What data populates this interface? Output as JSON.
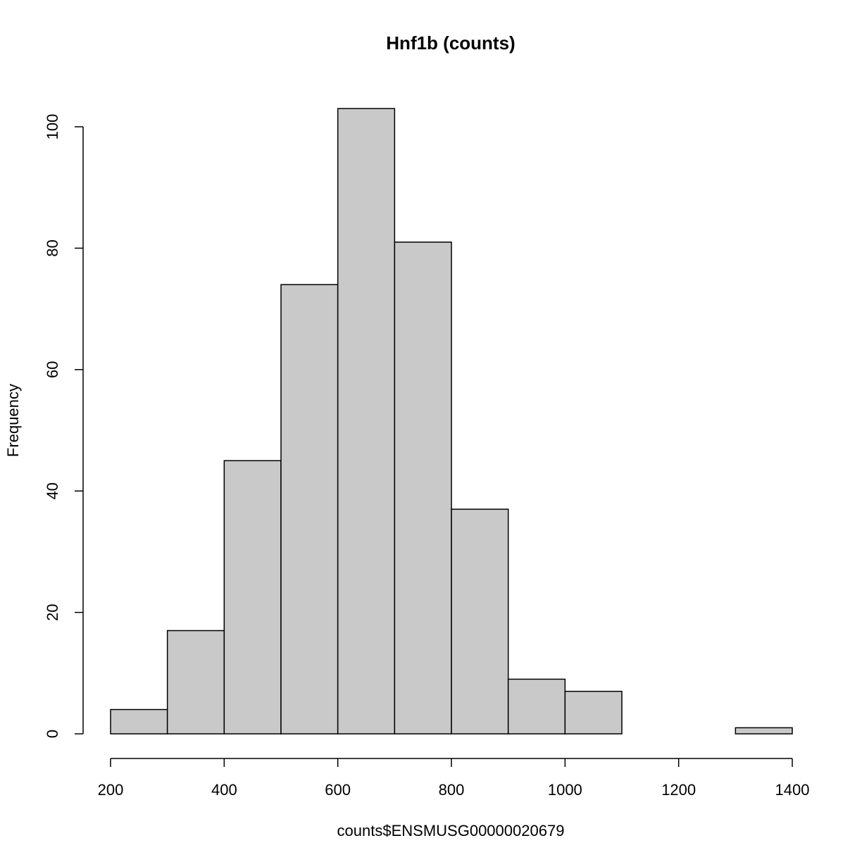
{
  "chart_data": {
    "type": "bar",
    "title": "Hnf1b (counts)",
    "xlabel": "counts$ENSMUSG00000020679",
    "ylabel": "Frequency",
    "bins": [
      {
        "start": 200,
        "end": 300,
        "count": 4
      },
      {
        "start": 300,
        "end": 400,
        "count": 17
      },
      {
        "start": 400,
        "end": 500,
        "count": 45
      },
      {
        "start": 500,
        "end": 600,
        "count": 74
      },
      {
        "start": 600,
        "end": 700,
        "count": 103
      },
      {
        "start": 700,
        "end": 800,
        "count": 81
      },
      {
        "start": 800,
        "end": 900,
        "count": 37
      },
      {
        "start": 900,
        "end": 1000,
        "count": 9
      },
      {
        "start": 1000,
        "end": 1100,
        "count": 7
      },
      {
        "start": 1100,
        "end": 1200,
        "count": 0
      },
      {
        "start": 1200,
        "end": 1300,
        "count": 0
      },
      {
        "start": 1300,
        "end": 1400,
        "count": 1
      }
    ],
    "xlim": [
      200,
      1400
    ],
    "ylim": [
      0,
      100
    ],
    "xticks": [
      "200",
      "400",
      "600",
      "800",
      "1000",
      "1200",
      "1400"
    ],
    "yticks": [
      "0",
      "20",
      "40",
      "60",
      "80",
      "100"
    ],
    "grid": false,
    "bar_color": "#c9c9c9"
  }
}
